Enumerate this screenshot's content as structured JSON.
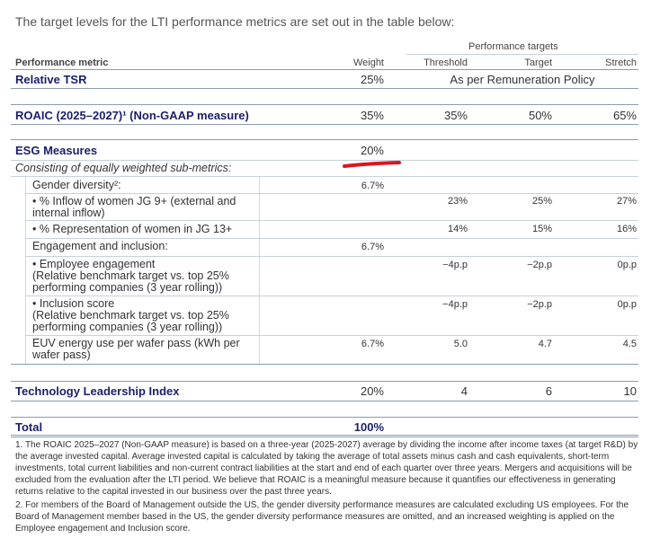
{
  "intro": "The target levels for the LTI performance metrics are set out in the table below:",
  "header": {
    "group": "Performance targets",
    "metric": "Performance metric",
    "weight": "Weight",
    "threshold": "Threshold",
    "target": "Target",
    "stretch": "Stretch"
  },
  "tsr": {
    "label": "Relative TSR",
    "weight": "25%",
    "note": "As per Remuneration Policy"
  },
  "roaic": {
    "label": "ROAIC (2025–2027)¹ (Non-GAAP measure)",
    "weight": "35%",
    "threshold": "35%",
    "target": "50%",
    "stretch": "65%"
  },
  "esg": {
    "label": "ESG Measures",
    "weight": "20%",
    "consisting": "Consisting of equally weighted sub-metrics:",
    "gender": {
      "label": "Gender diversity²:",
      "weight": "6.7%"
    },
    "inflow": {
      "line1": "• % Inflow of women JG 9+ (external and",
      "line2": "internal inflow)",
      "threshold": "23%",
      "target": "25%",
      "stretch": "27%"
    },
    "representation": {
      "label": "• % Representation of women in JG 13+",
      "threshold": "14%",
      "target": "15%",
      "stretch": "16%"
    },
    "engagement_inclusion": {
      "label": "Engagement and inclusion:",
      "weight": "6.7%"
    },
    "employee_engagement": {
      "line1": "• Employee engagement",
      "line2": "(Relative benchmark target vs. top 25%",
      "line3": "performing companies (3 year rolling))",
      "threshold": "−4p.p",
      "target": "−2p.p",
      "stretch": "0p.p"
    },
    "inclusion_score": {
      "line1": "• Inclusion score",
      "line2": "(Relative benchmark target vs. top 25%",
      "line3": "performing companies (3 year rolling))",
      "threshold": "−4p.p",
      "target": "−2p.p",
      "stretch": "0p.p"
    },
    "euv": {
      "line1": "EUV energy use per wafer pass (kWh per",
      "line2": "wafer pass)",
      "weight": "6.7%",
      "threshold": "5.0",
      "target": "4.7",
      "stretch": "4.5"
    }
  },
  "tli": {
    "label": "Technology Leadership Index",
    "weight": "20%",
    "threshold": "4",
    "target": "6",
    "stretch": "10"
  },
  "total": {
    "label": "Total",
    "weight": "100%"
  },
  "footnotes": {
    "f1": "1. The ROAIC 2025–2027 (Non-GAAP measure) is based on a three-year (2025-2027) average by dividing the income after income taxes (at target R&D) by the average invested capital. Average invested capital is calculated by taking the average of total assets minus cash and cash equivalents, short-term investments, total current liabilities and non-current contract liabilities at the start and end of each quarter over three years. Mergers and acquisitions will be excluded from the evaluation after the LTI period. We believe that ROAIC is a meaningful measure because it quantifies our effectiveness in generating returns relative to the capital invested in our business over the past three years.",
    "f2": "2. For members of the Board of Management outside the US, the gender diversity performance measures are calculated excluding US employees. For the Board of Management member based in the US, the gender diversity performance measures are omitted, and an increased weighting is applied on the Employee engagement and Inclusion score."
  },
  "colors": {
    "navy": "#1b1f6b",
    "annotation_red": "#e0141b"
  }
}
